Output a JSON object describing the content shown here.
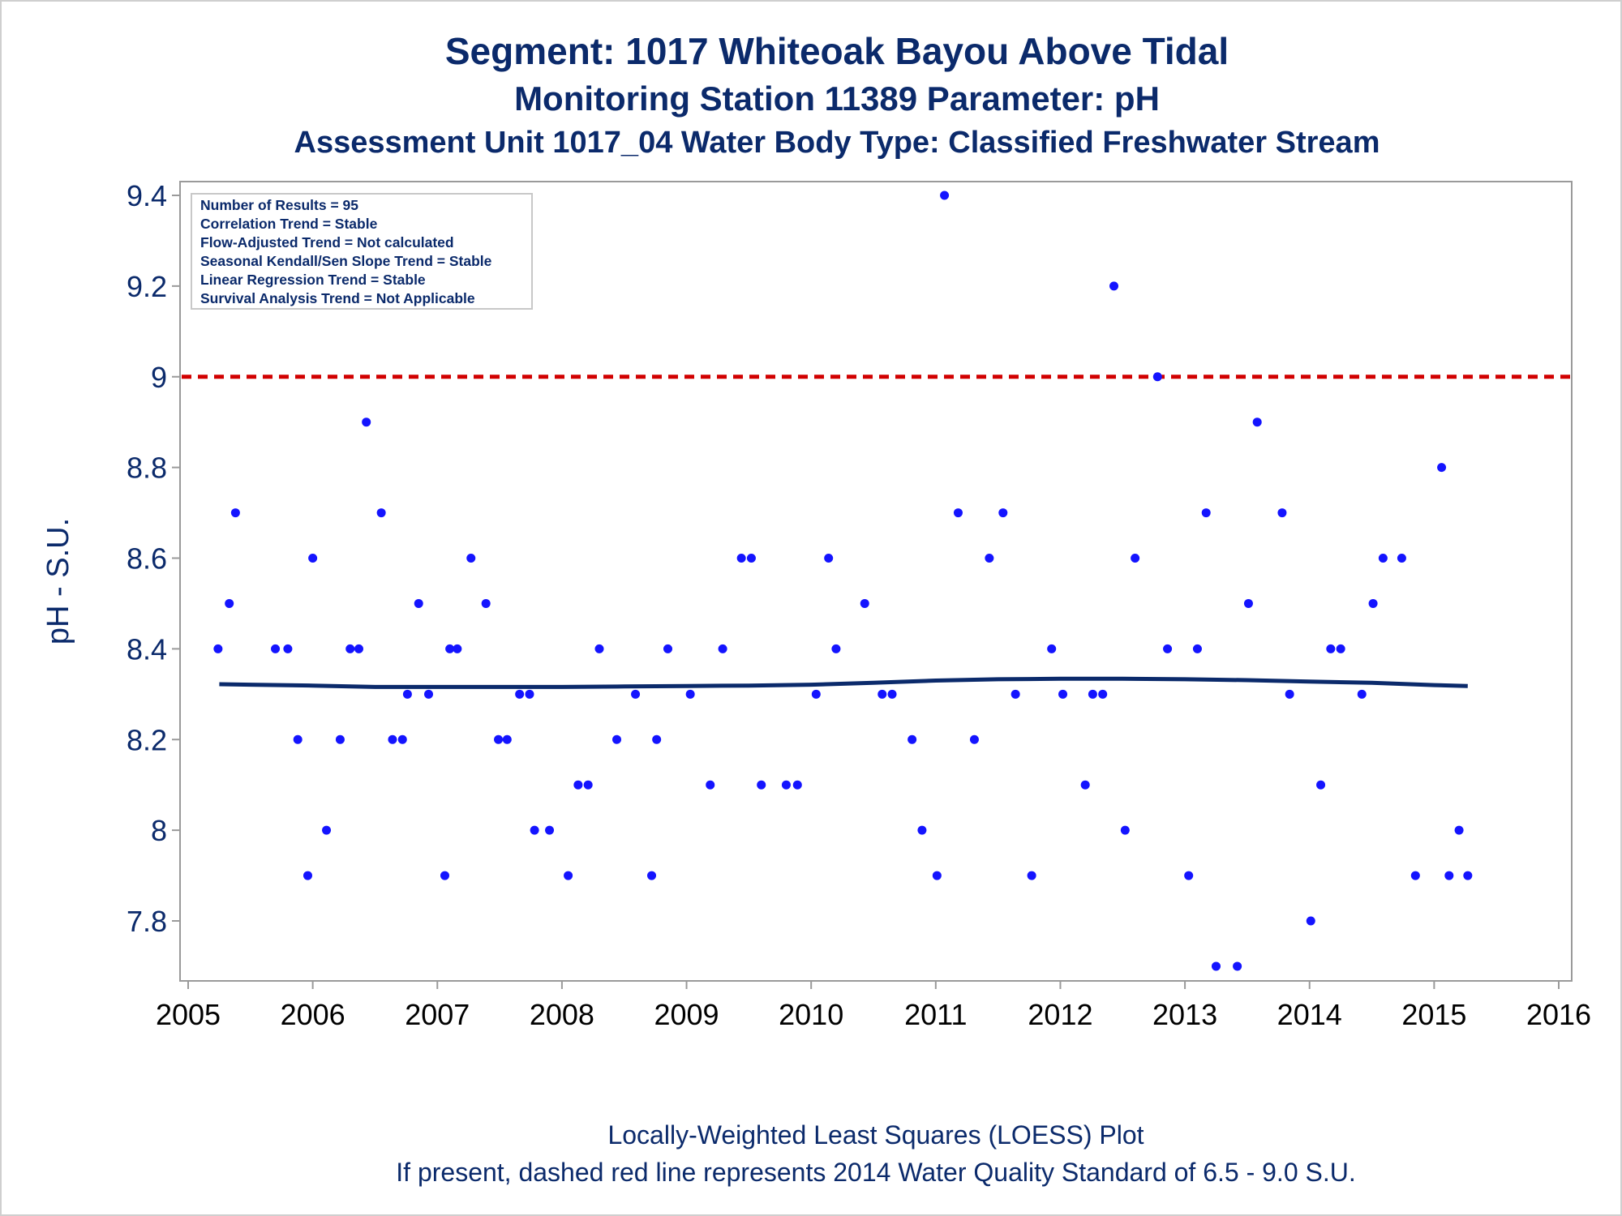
{
  "header": {
    "title": "Segment: 1017  Whiteoak Bayou Above Tidal",
    "subtitle": "Monitoring Station 11389 Parameter: pH",
    "subtitle2": "Assessment Unit 1017_04   Water Body Type: Classified Freshwater Stream"
  },
  "footer": {
    "line1": "Locally-Weighted Least Squares (LOESS) Plot",
    "line2": "If present, dashed red line represents 2014 Water Quality Standard of 6.5 - 9.0 S.U."
  },
  "stats_box": {
    "lines": [
      "Number of Results = 95",
      "Correlation Trend = Stable",
      "Flow-Adjusted Trend = Not calculated",
      "Seasonal Kendall/Sen Slope Trend = Stable",
      "Linear Regression Trend = Stable",
      "Survival Analysis Trend = Not Applicable"
    ]
  },
  "colors": {
    "points": "#1414ff",
    "loess": "#0b2a6b",
    "standard_line": "#d10000",
    "text": "#0b2a6b"
  },
  "chart_data": {
    "type": "scatter",
    "title": "Segment: 1017  Whiteoak Bayou Above Tidal",
    "ylabel": "pH - S.U.",
    "xlabel": "",
    "xlim": [
      2005,
      2016
    ],
    "ylim": [
      7.7,
      9.42
    ],
    "xticks": [
      "2005",
      "2006",
      "2007",
      "2008",
      "2009",
      "2010",
      "2011",
      "2012",
      "2013",
      "2014",
      "2015",
      "2016"
    ],
    "yticks": [
      "7.8",
      "8",
      "8.2",
      "8.4",
      "8.6",
      "8.8",
      "9",
      "9.2",
      "9.4"
    ],
    "reference_line": {
      "y": 9.0,
      "style": "dashed"
    },
    "loess": {
      "x": [
        2005.25,
        2005.5,
        2006.0,
        2006.5,
        2007.0,
        2007.5,
        2008.0,
        2008.5,
        2009.0,
        2009.5,
        2010.0,
        2010.5,
        2011.0,
        2011.5,
        2012.0,
        2012.5,
        2013.0,
        2013.5,
        2014.0,
        2014.5,
        2015.0,
        2015.27
      ],
      "y": [
        8.322,
        8.321,
        8.319,
        8.316,
        8.316,
        8.316,
        8.316,
        8.317,
        8.318,
        8.319,
        8.321,
        8.325,
        8.33,
        8.333,
        8.334,
        8.334,
        8.333,
        8.331,
        8.328,
        8.325,
        8.32,
        8.318
      ]
    },
    "points": [
      {
        "x": 2005.24,
        "y": 8.4
      },
      {
        "x": 2005.33,
        "y": 8.5
      },
      {
        "x": 2005.38,
        "y": 8.7
      },
      {
        "x": 2005.7,
        "y": 8.4
      },
      {
        "x": 2005.8,
        "y": 8.4
      },
      {
        "x": 2005.88,
        "y": 8.2
      },
      {
        "x": 2005.96,
        "y": 7.9
      },
      {
        "x": 2006.0,
        "y": 8.6
      },
      {
        "x": 2006.11,
        "y": 8.0
      },
      {
        "x": 2006.22,
        "y": 8.2
      },
      {
        "x": 2006.3,
        "y": 8.4
      },
      {
        "x": 2006.37,
        "y": 8.4
      },
      {
        "x": 2006.43,
        "y": 8.9
      },
      {
        "x": 2006.55,
        "y": 8.7
      },
      {
        "x": 2006.64,
        "y": 8.2
      },
      {
        "x": 2006.72,
        "y": 8.2
      },
      {
        "x": 2006.76,
        "y": 8.3
      },
      {
        "x": 2006.85,
        "y": 8.5
      },
      {
        "x": 2006.93,
        "y": 8.3
      },
      {
        "x": 2007.06,
        "y": 7.9
      },
      {
        "x": 2007.1,
        "y": 8.4
      },
      {
        "x": 2007.16,
        "y": 8.4
      },
      {
        "x": 2007.27,
        "y": 8.6
      },
      {
        "x": 2007.39,
        "y": 8.5
      },
      {
        "x": 2007.49,
        "y": 8.2
      },
      {
        "x": 2007.56,
        "y": 8.2
      },
      {
        "x": 2007.66,
        "y": 8.3
      },
      {
        "x": 2007.74,
        "y": 8.3
      },
      {
        "x": 2007.78,
        "y": 8.0
      },
      {
        "x": 2007.9,
        "y": 8.0
      },
      {
        "x": 2008.05,
        "y": 7.9
      },
      {
        "x": 2008.13,
        "y": 8.1
      },
      {
        "x": 2008.21,
        "y": 8.1
      },
      {
        "x": 2008.3,
        "y": 8.4
      },
      {
        "x": 2008.44,
        "y": 8.2
      },
      {
        "x": 2008.59,
        "y": 8.3
      },
      {
        "x": 2008.72,
        "y": 7.9
      },
      {
        "x": 2008.76,
        "y": 8.2
      },
      {
        "x": 2008.85,
        "y": 8.4
      },
      {
        "x": 2009.03,
        "y": 8.3
      },
      {
        "x": 2009.19,
        "y": 8.1
      },
      {
        "x": 2009.29,
        "y": 8.4
      },
      {
        "x": 2009.44,
        "y": 8.6
      },
      {
        "x": 2009.52,
        "y": 8.6
      },
      {
        "x": 2009.6,
        "y": 8.1
      },
      {
        "x": 2009.8,
        "y": 8.1
      },
      {
        "x": 2009.89,
        "y": 8.1
      },
      {
        "x": 2010.04,
        "y": 8.3
      },
      {
        "x": 2010.14,
        "y": 8.6
      },
      {
        "x": 2010.2,
        "y": 8.4
      },
      {
        "x": 2010.43,
        "y": 8.5
      },
      {
        "x": 2010.57,
        "y": 8.3
      },
      {
        "x": 2010.65,
        "y": 8.3
      },
      {
        "x": 2010.81,
        "y": 8.2
      },
      {
        "x": 2010.89,
        "y": 8.0
      },
      {
        "x": 2011.01,
        "y": 7.9
      },
      {
        "x": 2011.07,
        "y": 9.4
      },
      {
        "x": 2011.18,
        "y": 8.7
      },
      {
        "x": 2011.31,
        "y": 8.2
      },
      {
        "x": 2011.43,
        "y": 8.6
      },
      {
        "x": 2011.54,
        "y": 8.7
      },
      {
        "x": 2011.64,
        "y": 8.3
      },
      {
        "x": 2011.77,
        "y": 7.9
      },
      {
        "x": 2011.93,
        "y": 8.4
      },
      {
        "x": 2012.02,
        "y": 8.3
      },
      {
        "x": 2012.2,
        "y": 8.1
      },
      {
        "x": 2012.26,
        "y": 8.3
      },
      {
        "x": 2012.34,
        "y": 8.3
      },
      {
        "x": 2012.43,
        "y": 9.2
      },
      {
        "x": 2012.52,
        "y": 8.0
      },
      {
        "x": 2012.6,
        "y": 8.6
      },
      {
        "x": 2012.78,
        "y": 9.0
      },
      {
        "x": 2012.86,
        "y": 8.4
      },
      {
        "x": 2013.03,
        "y": 7.9
      },
      {
        "x": 2013.1,
        "y": 8.4
      },
      {
        "x": 2013.17,
        "y": 8.7
      },
      {
        "x": 2013.25,
        "y": 7.7
      },
      {
        "x": 2013.42,
        "y": 7.7
      },
      {
        "x": 2013.51,
        "y": 8.5
      },
      {
        "x": 2013.58,
        "y": 8.9
      },
      {
        "x": 2013.78,
        "y": 8.7
      },
      {
        "x": 2013.84,
        "y": 8.3
      },
      {
        "x": 2014.01,
        "y": 7.8
      },
      {
        "x": 2014.09,
        "y": 8.1
      },
      {
        "x": 2014.17,
        "y": 8.4
      },
      {
        "x": 2014.25,
        "y": 8.4
      },
      {
        "x": 2014.42,
        "y": 8.3
      },
      {
        "x": 2014.51,
        "y": 8.5
      },
      {
        "x": 2014.59,
        "y": 8.6
      },
      {
        "x": 2014.74,
        "y": 8.6
      },
      {
        "x": 2014.85,
        "y": 7.9
      },
      {
        "x": 2015.06,
        "y": 8.8
      },
      {
        "x": 2015.12,
        "y": 7.9
      },
      {
        "x": 2015.2,
        "y": 8.0
      },
      {
        "x": 2015.27,
        "y": 7.9
      }
    ]
  }
}
